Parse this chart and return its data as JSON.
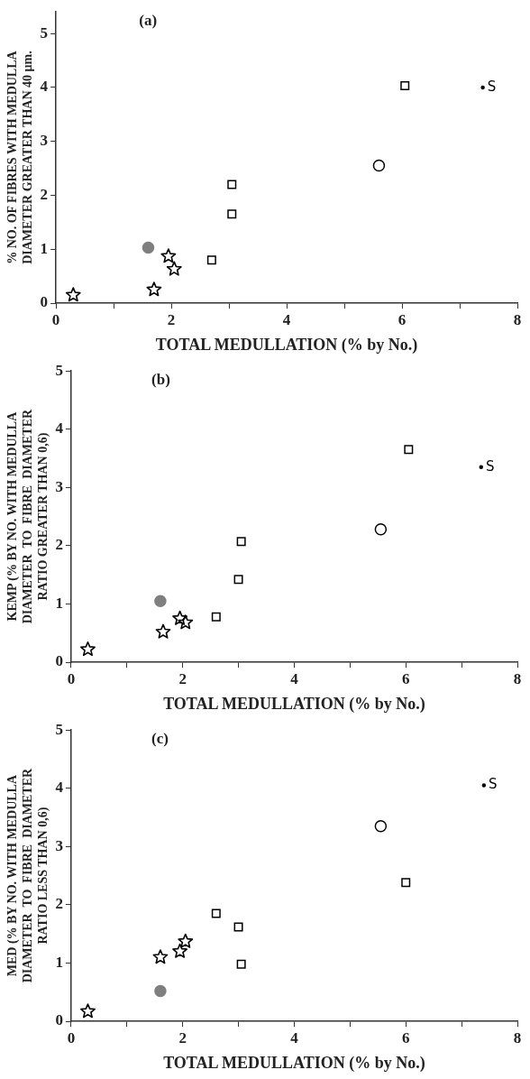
{
  "chart_data": [
    {
      "type": "scatter",
      "title": "(a)",
      "xlabel": "TOTAL MEDULLATION (% by No.)",
      "ylabel": "% NO. OF FIBRES WITH MEDULLA\nDIAMETER GREATER THAN 40 μm.",
      "xlim": [
        0,
        8
      ],
      "ylim": [
        0,
        5.4
      ],
      "xticks": [
        0,
        {
          "value": 1,
          "label": null
        },
        2,
        {
          "value": 3,
          "label": null
        },
        4,
        {
          "value": 5,
          "label": null
        },
        6,
        {
          "value": 7,
          "label": null
        },
        8
      ],
      "yticks": [
        0,
        1,
        2,
        3,
        4,
        5
      ],
      "grid": false,
      "legend": false,
      "series": [
        {
          "marker": "star",
          "color": "#000000",
          "x": [
            0.3,
            1.7,
            1.95,
            2.05
          ],
          "values": [
            0.15,
            0.25,
            0.87,
            0.63
          ]
        },
        {
          "marker": "circle",
          "color": "#7f7f7f",
          "x": [
            1.6
          ],
          "values": [
            1.03
          ]
        },
        {
          "marker": "square",
          "color": "#000000",
          "x": [
            2.7,
            3.05,
            3.05,
            6.05
          ],
          "values": [
            0.8,
            1.65,
            2.2,
            4.03
          ]
        },
        {
          "marker": "circle",
          "color": "#000000",
          "x": [
            5.6
          ],
          "values": [
            2.55
          ]
        },
        {
          "name": "S",
          "color": "#000000",
          "x": [
            7.4
          ],
          "values": [
            4.0
          ]
        }
      ]
    },
    {
      "type": "scatter",
      "title": "(b)",
      "xlabel": "TOTAL MEDULLATION (% by No.)",
      "ylabel": "KEMP (% BY NO. WITH MEDULLA\nDIAMETER  TO  FIBRE  DIAMETER\nRATIO GREATER THAN 0,6)",
      "xlim": [
        0,
        8
      ],
      "ylim": [
        0,
        5
      ],
      "xticks": [
        0,
        {
          "value": 1,
          "label": null
        },
        2,
        {
          "value": 3,
          "label": null
        },
        4,
        {
          "value": 5,
          "label": null
        },
        6,
        {
          "value": 7,
          "label": null
        },
        8
      ],
      "yticks": [
        0,
        1,
        2,
        3,
        4,
        5
      ],
      "grid": false,
      "legend": false,
      "series": [
        {
          "marker": "star",
          "color": "#000000",
          "x": [
            0.3,
            1.65,
            1.95,
            2.05
          ],
          "values": [
            0.22,
            0.52,
            0.75,
            0.68
          ]
        },
        {
          "marker": "circle",
          "color": "#7f7f7f",
          "x": [
            1.6
          ],
          "values": [
            1.05
          ]
        },
        {
          "marker": "square",
          "color": "#000000",
          "x": [
            2.6,
            3.0,
            3.05,
            6.05
          ],
          "values": [
            0.78,
            1.42,
            2.07,
            3.65
          ]
        },
        {
          "marker": "circle",
          "color": "#000000",
          "x": [
            5.55
          ],
          "values": [
            2.28
          ]
        },
        {
          "name": "S",
          "color": "#000000",
          "x": [
            7.35
          ],
          "values": [
            3.35
          ]
        }
      ]
    },
    {
      "type": "scatter",
      "title": "(c)",
      "xlabel": "TOTAL MEDULLATION (% by No.)",
      "ylabel": "MED (% BY NO. WITH MEDULLA\nDIAMETER  TO  FIBRE  DIAMETER\nRATIO LESS THAN 0,6)",
      "xlim": [
        0,
        8
      ],
      "ylim": [
        0,
        5
      ],
      "xticks": [
        0,
        {
          "value": 1,
          "label": null
        },
        2,
        {
          "value": 3,
          "label": null
        },
        4,
        {
          "value": 5,
          "label": null
        },
        6,
        {
          "value": 7,
          "label": null
        },
        8
      ],
      "yticks": [
        0,
        1,
        2,
        3,
        4,
        5
      ],
      "grid": false,
      "legend": false,
      "series": [
        {
          "marker": "star",
          "color": "#000000",
          "x": [
            0.3,
            1.6,
            1.95,
            2.05
          ],
          "values": [
            0.17,
            1.1,
            1.2,
            1.37
          ]
        },
        {
          "marker": "circle",
          "color": "#7f7f7f",
          "x": [
            1.6
          ],
          "values": [
            0.52
          ]
        },
        {
          "marker": "square",
          "color": "#000000",
          "x": [
            2.6,
            3.0,
            3.05,
            6.0
          ],
          "values": [
            1.85,
            1.62,
            0.98,
            2.38
          ]
        },
        {
          "marker": "circle",
          "color": "#000000",
          "x": [
            5.55
          ],
          "values": [
            3.35
          ]
        },
        {
          "name": "S",
          "color": "#000000",
          "x": [
            7.4
          ],
          "values": [
            4.05
          ]
        }
      ]
    }
  ]
}
